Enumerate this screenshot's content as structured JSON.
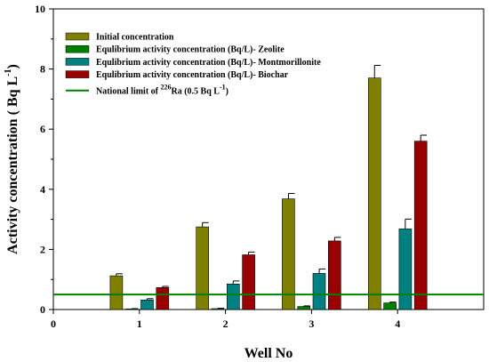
{
  "chart_data": {
    "type": "bar",
    "xlabel": "Well No",
    "ylabel": "Activity concentration ( Bq L",
    "ylabel_sup": "-1",
    "ylabel_end": ")",
    "xlim": [
      0,
      5
    ],
    "ylim": [
      0,
      10
    ],
    "x_ticks": [
      "0",
      "1",
      "2",
      "3",
      "4"
    ],
    "y_ticks": [
      "0",
      "2",
      "4",
      "6",
      "8",
      "10"
    ],
    "categories": [
      "1",
      "2",
      "3",
      "4"
    ],
    "grid": false,
    "legend_position": "top-left",
    "series": [
      {
        "name": "Initial concentration",
        "color": "#808000",
        "values": [
          1.12,
          2.75,
          3.68,
          7.7
        ],
        "errors": [
          0.07,
          0.14,
          0.18,
          0.42
        ]
      },
      {
        "name": "Equlibrium activity concentration (Bq/L)- Zeolite",
        "color": "#008000",
        "values": [
          0.02,
          0.03,
          0.1,
          0.22
        ],
        "errors": [
          0.01,
          0.01,
          0.02,
          0.03
        ]
      },
      {
        "name": "Equlibrium activity concentration (Bq/L)- Montmorillonite",
        "color": "#008080",
        "values": [
          0.32,
          0.85,
          1.2,
          2.68
        ],
        "errors": [
          0.04,
          0.1,
          0.15,
          0.33
        ]
      },
      {
        "name": "Equlibrium activity concentration (Bq/L)- Biochar",
        "color": "#990000",
        "values": [
          0.73,
          1.82,
          2.28,
          5.6
        ],
        "errors": [
          0.04,
          0.09,
          0.12,
          0.2
        ]
      }
    ],
    "reference_line": {
      "label_prefix": "National limit of ",
      "label_sup": "226",
      "label_suffix": "Ra (0.5 Bq L",
      "label_sup2": "-1",
      "label_end": ")",
      "value": 0.5,
      "color": "#008000"
    }
  }
}
